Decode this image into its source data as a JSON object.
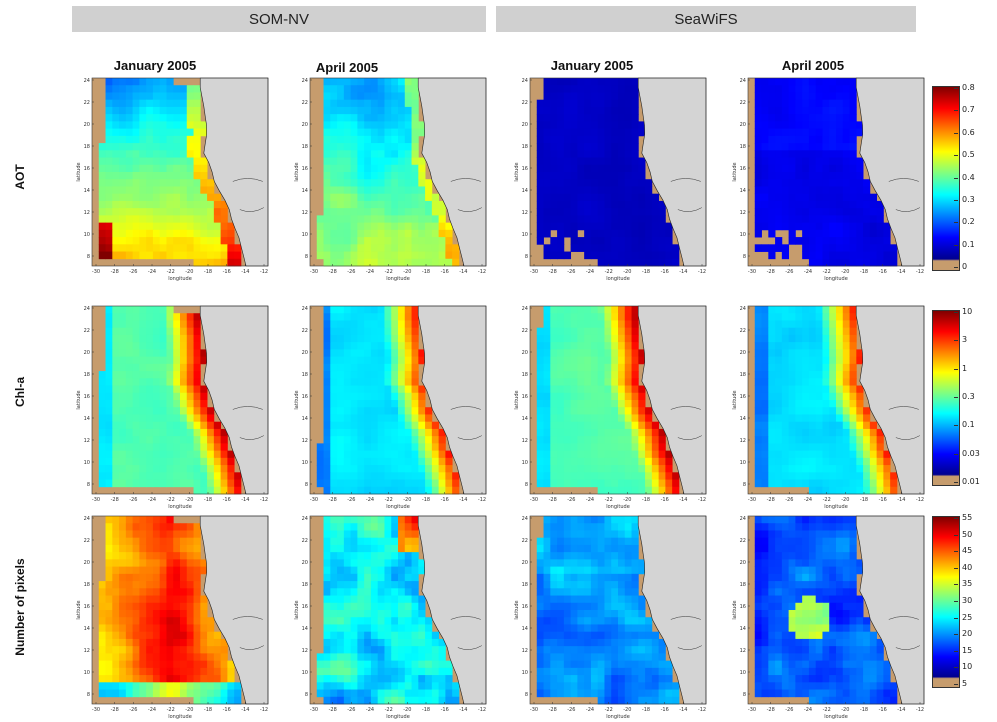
{
  "headers": [
    {
      "label": "SOM-NV"
    },
    {
      "label": "SeaWiFS"
    }
  ],
  "months": [
    "January 2005",
    "April 2005",
    "January 2005",
    "April 2005"
  ],
  "rows": [
    {
      "label": "AOT"
    },
    {
      "label": "Chl-a"
    },
    {
      "label": "Number of pixels"
    }
  ],
  "axes": {
    "xlabel": "longitude",
    "ylabel": "latitude",
    "xticks": [
      "-30",
      "-28",
      "-26",
      "-24",
      "-22",
      "-20",
      "-18",
      "-16",
      "-14",
      "-12"
    ],
    "yticks": [
      "24",
      "22",
      "20",
      "18",
      "16",
      "14",
      "12",
      "10",
      "8"
    ]
  },
  "colorbars": [
    {
      "name": "aot",
      "ticks": [
        "0.8",
        "0.7",
        "0.6",
        "0.5",
        "0.4",
        "0.3",
        "0.2",
        "0.1",
        "0"
      ]
    },
    {
      "name": "chl",
      "ticks": [
        "10",
        "3",
        "1",
        "0.3",
        "0.1",
        "0.03",
        "0.01"
      ]
    },
    {
      "name": "pixels",
      "ticks": [
        "55",
        "50",
        "45",
        "40",
        "35",
        "30",
        "25",
        "20",
        "15",
        "10",
        "5"
      ]
    }
  ],
  "colors": {
    "land": "#c69c6d",
    "continent": "#d4d4d4",
    "header_bg": "#d0d0d0",
    "jet": [
      "#00008f",
      "#0000ff",
      "#0080ff",
      "#00ffff",
      "#80ff80",
      "#ffff00",
      "#ff8000",
      "#ff0000",
      "#800000"
    ]
  }
}
